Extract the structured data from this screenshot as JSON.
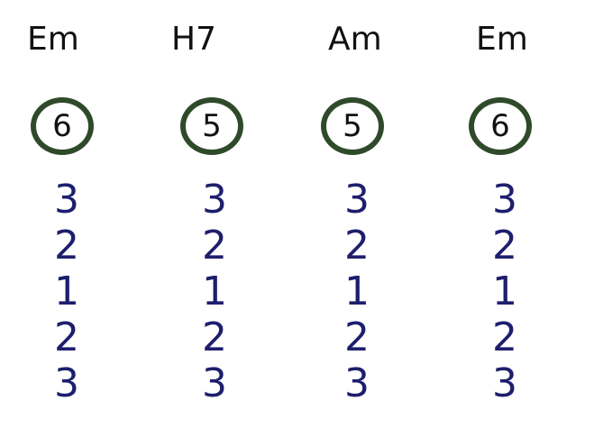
{
  "chords": [
    {
      "name": "Em",
      "string": "6",
      "fingers": [
        "3",
        "2",
        "1",
        "2",
        "3"
      ]
    },
    {
      "name": "H7",
      "string": "5",
      "fingers": [
        "3",
        "2",
        "1",
        "2",
        "3"
      ]
    },
    {
      "name": "Am",
      "string": "5",
      "fingers": [
        "3",
        "2",
        "1",
        "2",
        "3"
      ]
    },
    {
      "name": "Em",
      "string": "6",
      "fingers": [
        "3",
        "2",
        "1",
        "2",
        "3"
      ]
    }
  ],
  "colors": {
    "chord_text": "#111111",
    "circle_border": "#2f4a2a",
    "finger_text": "#1e1e6e"
  }
}
